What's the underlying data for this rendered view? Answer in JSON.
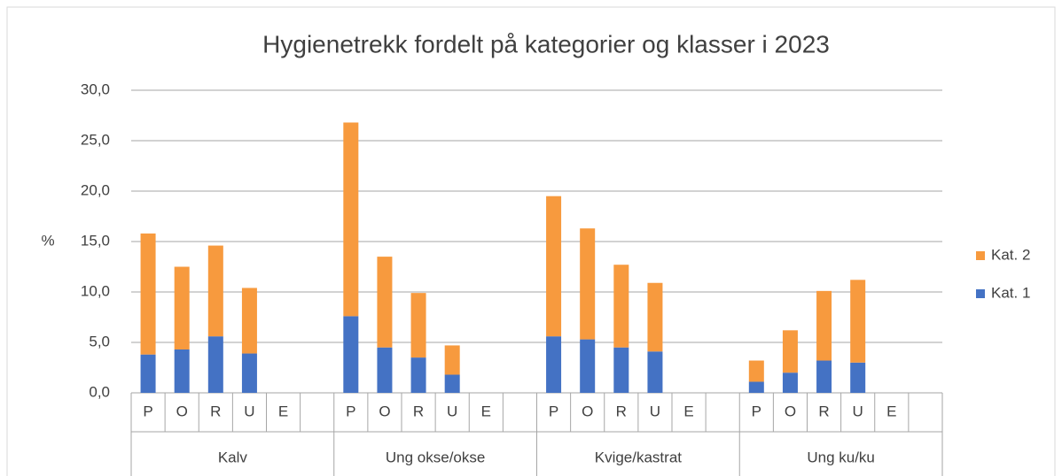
{
  "chart_data": {
    "type": "stacked_bar",
    "title": "Hygienetrekk fordelt på kategorier og klasser i 2023",
    "y_label": "%",
    "categories": [
      "P",
      "O",
      "R",
      "U",
      "E",
      null,
      "P",
      "O",
      "R",
      "U",
      "E",
      null,
      "P",
      "O",
      "R",
      "U",
      "E",
      null,
      "P",
      "O",
      "R",
      "U",
      "E",
      null
    ],
    "category_groups": [
      "Kalv",
      "Ung okse/okse",
      "Kvige/kastrat",
      "Ung ku/ku"
    ],
    "series": [
      {
        "name": "Kat. 1",
        "color": "#4472c4",
        "values": [
          3.8,
          4.3,
          5.6,
          3.9,
          null,
          null,
          7.6,
          4.5,
          3.5,
          1.8,
          null,
          null,
          5.6,
          5.3,
          4.5,
          4.1,
          null,
          null,
          1.1,
          2.0,
          3.2,
          3.0,
          null,
          null
        ]
      },
      {
        "name": "Kat. 2",
        "color": "#f79a3e",
        "values": [
          12.0,
          8.2,
          9.0,
          6.5,
          null,
          null,
          19.2,
          9.0,
          6.4,
          2.9,
          null,
          null,
          13.9,
          11.0,
          8.2,
          6.8,
          null,
          null,
          2.1,
          4.2,
          6.9,
          8.2,
          null,
          null
        ]
      }
    ],
    "ylim": [
      0,
      30
    ],
    "yticks": [
      {
        "value": 0,
        "label": "0,0"
      },
      {
        "value": 5,
        "label": "5,0"
      },
      {
        "value": 10,
        "label": "10,0"
      },
      {
        "value": 15,
        "label": "15,0"
      },
      {
        "value": 20,
        "label": "20,0"
      },
      {
        "value": 25,
        "label": "25,0"
      },
      {
        "value": 30,
        "label": "30,0"
      }
    ],
    "grid": true,
    "legend": "right"
  }
}
